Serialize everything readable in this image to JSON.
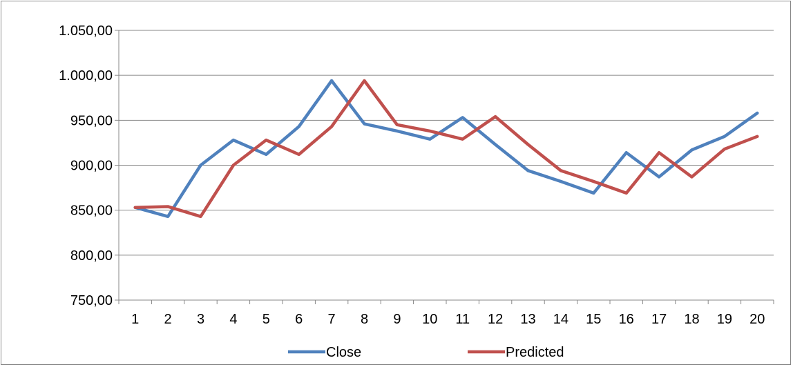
{
  "chart_data": {
    "type": "line",
    "title": "",
    "xlabel": "",
    "ylabel": "",
    "x": [
      1,
      2,
      3,
      4,
      5,
      6,
      7,
      8,
      9,
      10,
      11,
      12,
      13,
      14,
      15,
      16,
      17,
      18,
      19,
      20
    ],
    "x_tick_labels": [
      "1",
      "2",
      "3",
      "4",
      "5",
      "6",
      "7",
      "8",
      "9",
      "10",
      "11",
      "12",
      "13",
      "14",
      "15",
      "16",
      "17",
      "18",
      "19",
      "20"
    ],
    "ylim": [
      750,
      1050
    ],
    "y_ticks": [
      750,
      800,
      850,
      900,
      950,
      1000,
      1050
    ],
    "y_tick_labels": [
      "750,00",
      "800,00",
      "850,00",
      "900,00",
      "950,00",
      "1.000,00",
      "1.050,00"
    ],
    "grid": "horizontal",
    "legend_position": "bottom",
    "series": [
      {
        "name": "Close",
        "color": "#4f81bd",
        "values": [
          853,
          843,
          900,
          928,
          912,
          943,
          994,
          946,
          938,
          929,
          953,
          923,
          894,
          882,
          869,
          914,
          887,
          917,
          932,
          958
        ]
      },
      {
        "name": "Predicted",
        "color": "#c0504d",
        "values": [
          853,
          854,
          843,
          900,
          928,
          912,
          943,
          994,
          945,
          938,
          929,
          954,
          923,
          894,
          882,
          869,
          914,
          887,
          918,
          932
        ]
      }
    ]
  }
}
